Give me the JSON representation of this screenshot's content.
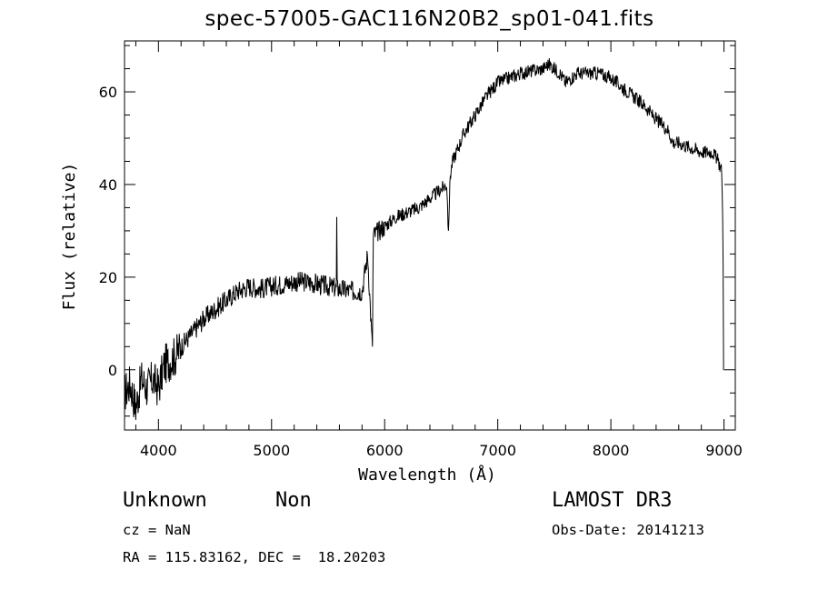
{
  "chart_data": {
    "type": "line",
    "title": "spec-57005-GAC116N20B2_sp01-041.fits",
    "xlabel": "Wavelength (Å)",
    "ylabel": "Flux (relative)",
    "xlim": [
      3700,
      9100
    ],
    "ylim": [
      -13,
      71
    ],
    "x_ticks": [
      "4000",
      "5000",
      "6000",
      "7000",
      "8000",
      "9000"
    ],
    "y_ticks": [
      "0",
      "20",
      "40",
      "60"
    ],
    "x_tick_values": [
      4000,
      5000,
      6000,
      7000,
      8000,
      9000
    ],
    "y_tick_values": [
      0,
      20,
      40,
      60
    ],
    "series": [
      {
        "name": "flux",
        "x": [
          3700,
          3750,
          3800,
          3850,
          3900,
          3950,
          4000,
          4050,
          4100,
          4150,
          4200,
          4300,
          4400,
          4500,
          4600,
          4700,
          4800,
          4900,
          5000,
          5100,
          5200,
          5300,
          5400,
          5500,
          5600,
          5700,
          5800,
          5850,
          5890,
          5900,
          5950,
          6000,
          6100,
          6200,
          6300,
          6400,
          6500,
          6550,
          6563,
          6580,
          6600,
          6700,
          6800,
          6900,
          7000,
          7100,
          7200,
          7300,
          7400,
          7450,
          7500,
          7550,
          7600,
          7650,
          7700,
          7800,
          7900,
          8000,
          8100,
          8200,
          8300,
          8400,
          8500,
          8550,
          8600,
          8700,
          8800,
          8900,
          8950,
          8980,
          8990,
          9000
        ],
        "y": [
          -5,
          -3,
          -8,
          -2,
          -4,
          -2,
          -4,
          1,
          2,
          3,
          5,
          8,
          11,
          13,
          15,
          17,
          18,
          17.5,
          18,
          18.5,
          19,
          19,
          18.5,
          18,
          17.5,
          17,
          17,
          25,
          5,
          29,
          30,
          31,
          33,
          34,
          35,
          37,
          39,
          40,
          30,
          42,
          45,
          51,
          55,
          59,
          62,
          63,
          64,
          64.5,
          65,
          66,
          65,
          64,
          62,
          63,
          64,
          64,
          64,
          63,
          61,
          59,
          57,
          54,
          52,
          49,
          49,
          48,
          47,
          47,
          45,
          43,
          30,
          0
        ]
      }
    ]
  },
  "labels": {
    "object_class": "Unknown",
    "object_subclass": "Non",
    "survey": "LAMOST DR3",
    "cz": "cz = NaN",
    "obs_date": "Obs-Date: 20141213",
    "coords": "RA = 115.83162, DEC =  18.20203"
  }
}
